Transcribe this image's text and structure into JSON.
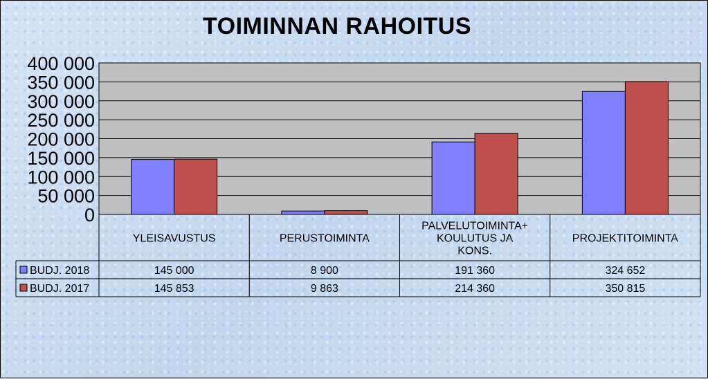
{
  "chart_data": {
    "type": "bar",
    "title": "TOIMINNAN RAHOITUS",
    "categories": [
      [
        "YLEISAVUSTUS"
      ],
      [
        "PERUSTOIMINTA"
      ],
      [
        "PALVELUTOIMINTA+",
        "KOULUTUS JA",
        "KONS."
      ],
      [
        "PROJEKTITOIMINTA"
      ]
    ],
    "series": [
      {
        "name": "BUDJ. 2018",
        "color": "#8080ff",
        "values": [
          145000,
          8900,
          191360,
          324652
        ],
        "labels": [
          "145 000",
          "8 900",
          "191 360",
          "324 652"
        ]
      },
      {
        "name": "BUDJ. 2017",
        "color": "#c0504d",
        "values": [
          145853,
          9863,
          214360,
          350815
        ],
        "labels": [
          "145 853",
          "9 863",
          "214 360",
          "350 815"
        ]
      }
    ],
    "yticks": [
      "0",
      "50 000",
      "100 000",
      "150 000",
      "200 000",
      "250 000",
      "300 000",
      "350 000",
      "400 000"
    ],
    "ylim": [
      0,
      400000
    ],
    "grid": true,
    "plot_background": "#c0c0c0",
    "legend": "data-table"
  }
}
